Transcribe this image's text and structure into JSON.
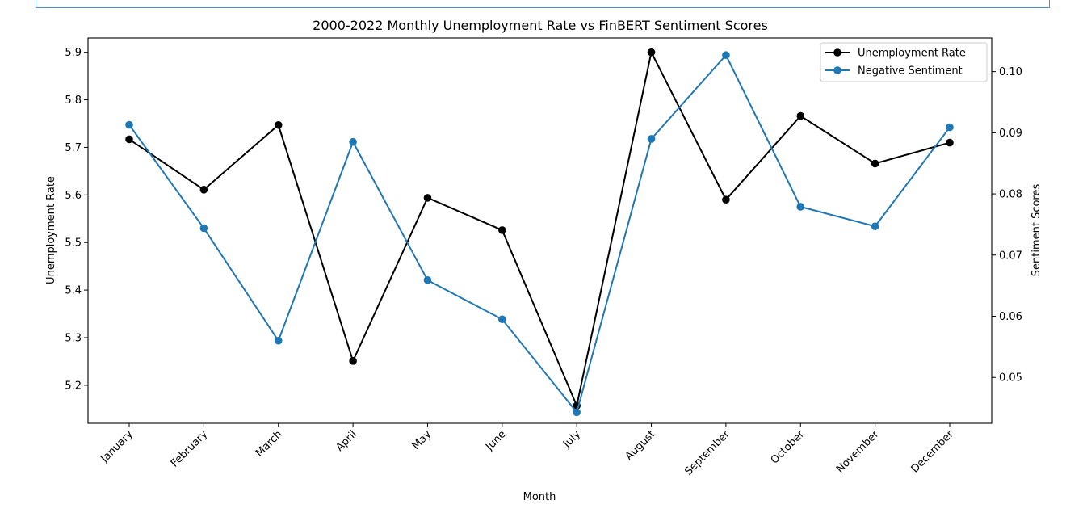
{
  "chart_data": {
    "type": "line",
    "title": "2000-2022 Monthly Unemployment Rate vs FinBERT Sentiment Scores",
    "xlabel": "Month",
    "ylabel": "Unemployment Rate",
    "y2label": "Sentiment Scores",
    "categories": [
      "January",
      "February",
      "March",
      "April",
      "May",
      "June",
      "July",
      "August",
      "September",
      "October",
      "November",
      "December"
    ],
    "ylim": [
      5.12,
      5.93
    ],
    "y2lim": [
      0.0425,
      0.1055
    ],
    "yticks": [
      5.2,
      5.3,
      5.4,
      5.5,
      5.6,
      5.7,
      5.8,
      5.9
    ],
    "y2ticks": [
      0.05,
      0.06,
      0.07,
      0.08,
      0.09,
      0.1
    ],
    "grid": false,
    "legend_position": "top-right",
    "series": [
      {
        "name": "Unemployment Rate",
        "axis": "left",
        "color": "#000000",
        "marker": "circle",
        "values": [
          5.717,
          5.611,
          5.747,
          5.251,
          5.594,
          5.526,
          5.157,
          5.9,
          5.59,
          5.766,
          5.666,
          5.71
        ]
      },
      {
        "name": "Negative Sentiment",
        "axis": "right",
        "color": "#1f77b4",
        "marker": "circle",
        "values": [
          0.0913,
          0.0744,
          0.056,
          0.0885,
          0.0659,
          0.0595,
          0.0443,
          0.089,
          0.1027,
          0.0779,
          0.0747,
          0.0909
        ]
      }
    ]
  }
}
